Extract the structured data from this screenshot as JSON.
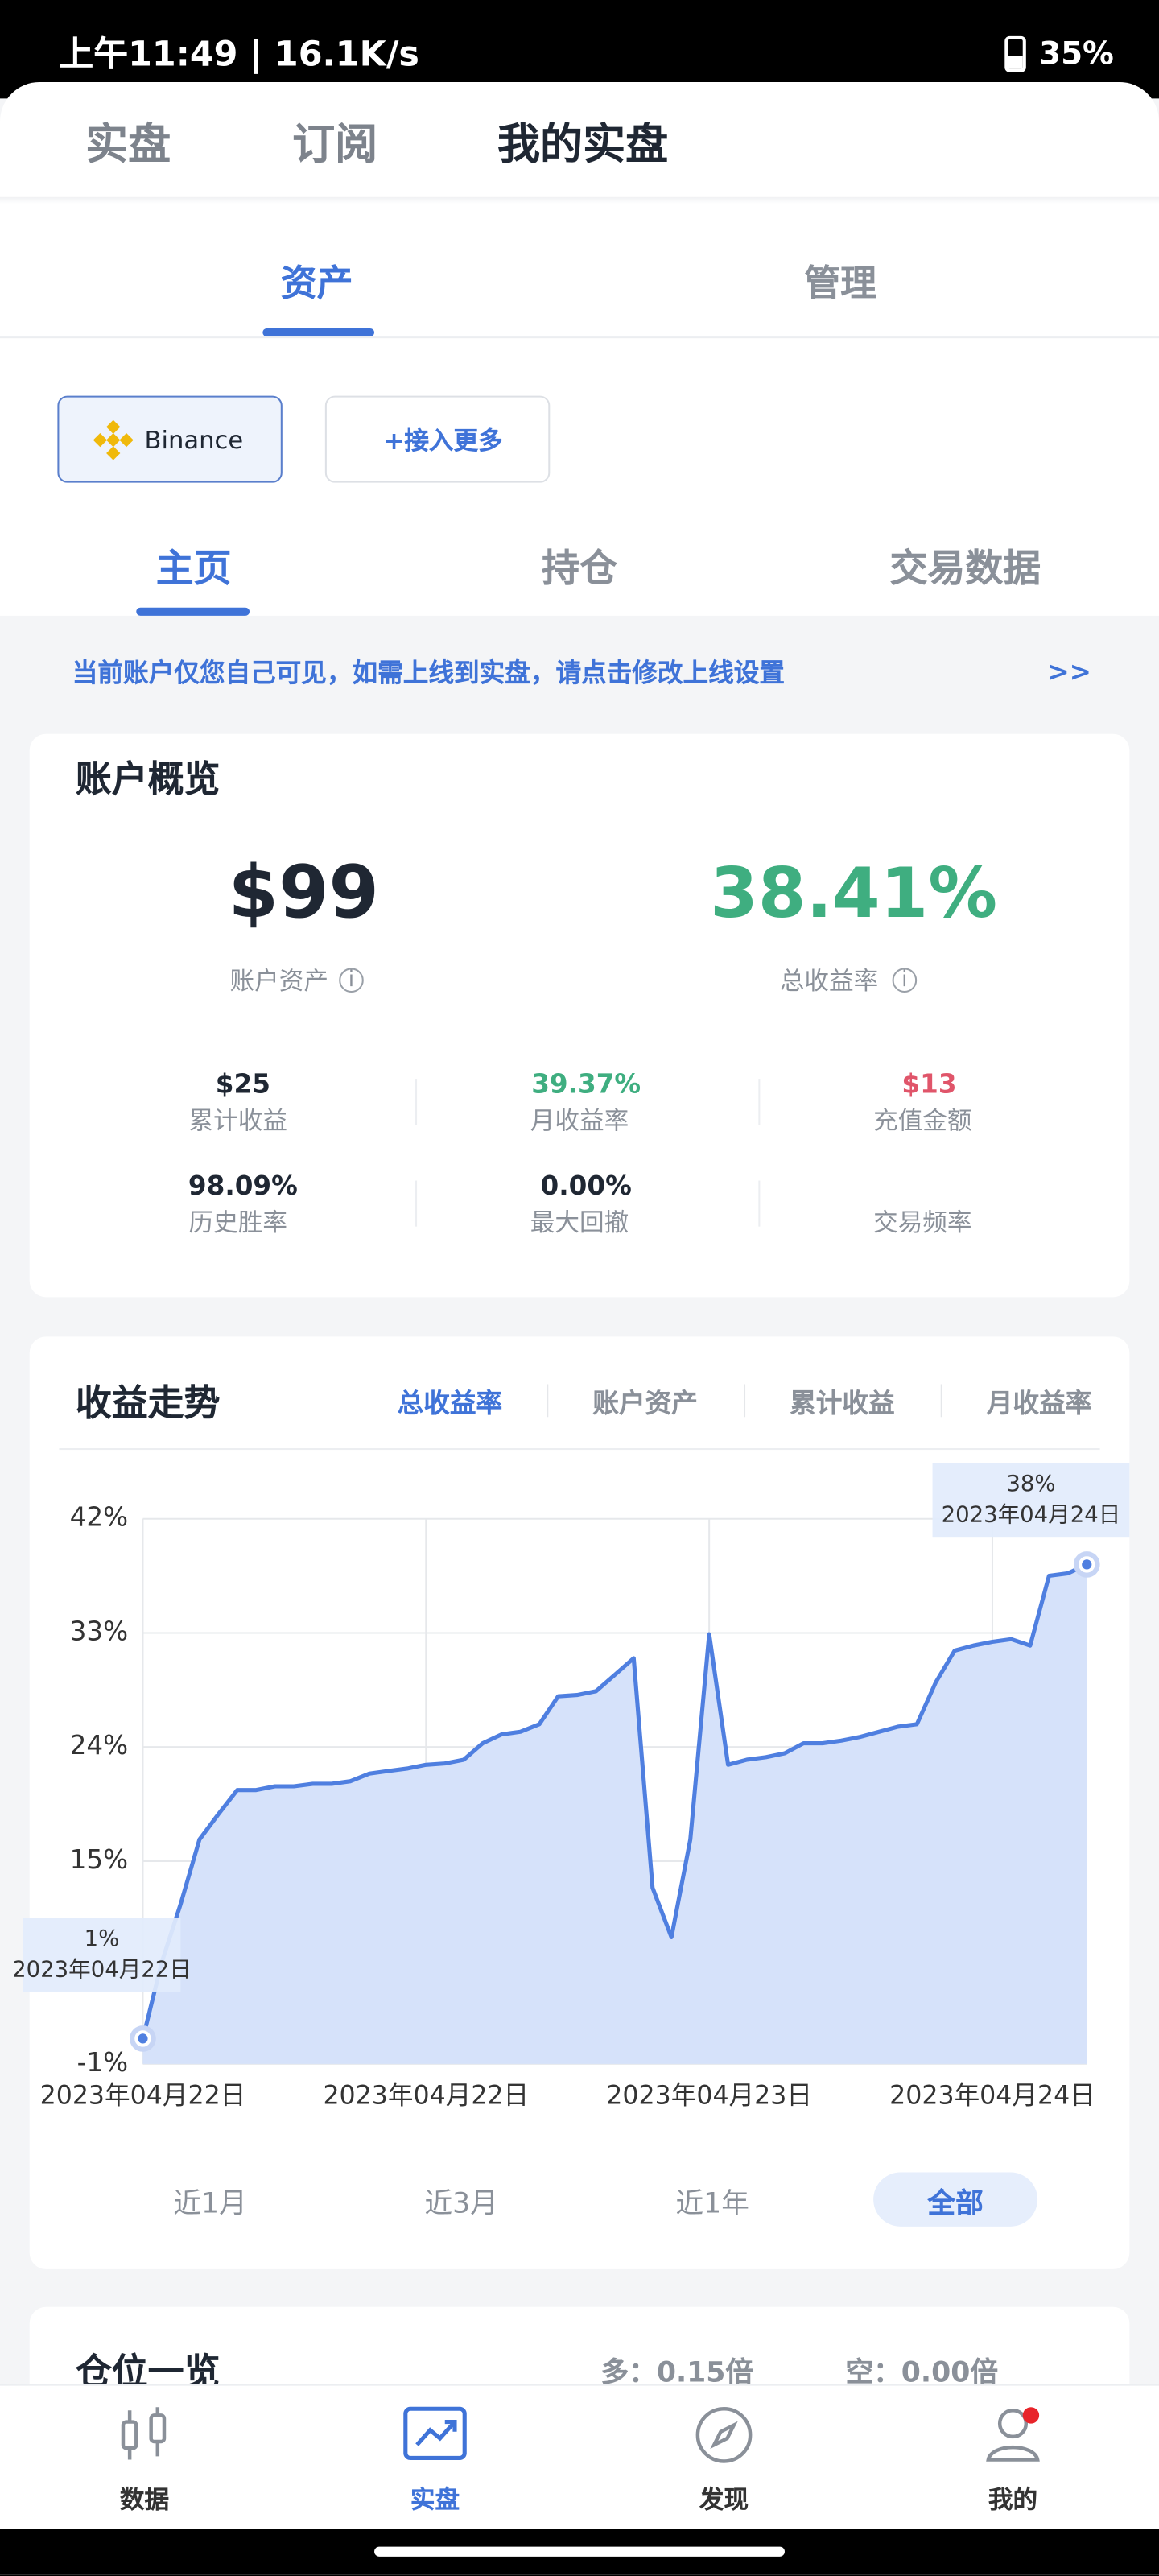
{
  "status_bar": {
    "time": "上午11:49 | 16.1K/s",
    "battery": "35%"
  },
  "top_tabs": [
    "实盘",
    "订阅",
    "我的实盘"
  ],
  "sub_tabs": [
    "资产",
    "管理"
  ],
  "exchanges": [
    "Binance",
    "+接入更多"
  ],
  "section_tabs": [
    "主页",
    "持仓",
    "交易数据"
  ],
  "notice": {
    "text": "当前账户仅您自己可见，如需上线到实盘，请点击修改上线设置",
    "link": ">>"
  },
  "overview": {
    "title": "账户概览",
    "assets": {
      "value": "$99",
      "label": "账户资产"
    },
    "return": {
      "value": "38.41%",
      "label": "总收益率"
    },
    "stats": [
      {
        "value": "$25",
        "label": "累计收益"
      },
      {
        "value": "39.37%",
        "label": "月收益率"
      },
      {
        "value": "$13",
        "label": "充值金额"
      },
      {
        "value": "98.09%",
        "label": "历史胜率"
      },
      {
        "value": "0.00%",
        "value_label": "最大回撤"
      },
      {
        "label": "交易频率"
      }
    ]
  },
  "chart_data": {
    "type": "line",
    "title": "收益走势",
    "metric_tabs": [
      "总收益率",
      "账户资产",
      "累计收益",
      "月收益率"
    ],
    "range_tabs": [
      "近1月",
      "近3月",
      "近1年",
      "全部"
    ],
    "categories": [
      "2023年04月22日",
      null,
      null,
      null,
      null,
      null,
      null,
      null,
      null,
      null,
      null,
      null,
      null,
      null,
      null,
      "2023年04月22日",
      null,
      null,
      null,
      null,
      null,
      null,
      null,
      null,
      null,
      null,
      null,
      null,
      null,
      null,
      "2023年04月23日",
      null,
      null,
      null,
      null,
      null,
      null,
      null,
      null,
      null,
      null,
      null,
      null,
      null,
      null,
      "2023年04月24日",
      null,
      null,
      null,
      null,
      null
    ],
    "values": [
      1,
      7.0,
      11.6,
      16.7,
      18.7,
      20.6,
      20.6,
      20.9,
      20.9,
      21.1,
      21.1,
      21.3,
      21.9,
      22.1,
      22.3,
      22.6,
      22.7,
      23.0,
      24.3,
      25.0,
      25.2,
      25.8,
      28.0,
      28.1,
      28.4,
      29.7,
      31.0,
      12.9,
      9.0,
      16.7,
      32.9,
      22.6,
      23.0,
      23.2,
      23.5,
      24.3,
      24.3,
      24.5,
      24.8,
      25.2,
      25.6,
      25.8,
      29.1,
      31.6,
      32.0,
      32.3,
      32.5,
      32.0,
      37.5,
      37.7,
      38.4
    ],
    "color": "#4f7fe0",
    "fill_color": "#d6e2fa",
    "ylim": [
      -1,
      42
    ],
    "yticks": [
      {
        "value": -1,
        "label": "-1%"
      },
      {
        "value": 15,
        "label": "15%"
      },
      {
        "value": 24,
        "label": "24%"
      },
      {
        "value": 33,
        "label": "33%"
      },
      {
        "value": 42,
        "label": "42%"
      }
    ],
    "grid": true,
    "tooltips": [
      {
        "index": 0,
        "value": "1%",
        "date": "2023年04月22日"
      },
      {
        "index": 50,
        "value": "38%",
        "date": "2023年04月24日"
      }
    ]
  },
  "positions": {
    "title": "仓位一览",
    "long": "多：0.15倍",
    "short": "空：0.00倍"
  },
  "bottom_nav": [
    "数据",
    "实盘",
    "发现",
    "我的"
  ]
}
